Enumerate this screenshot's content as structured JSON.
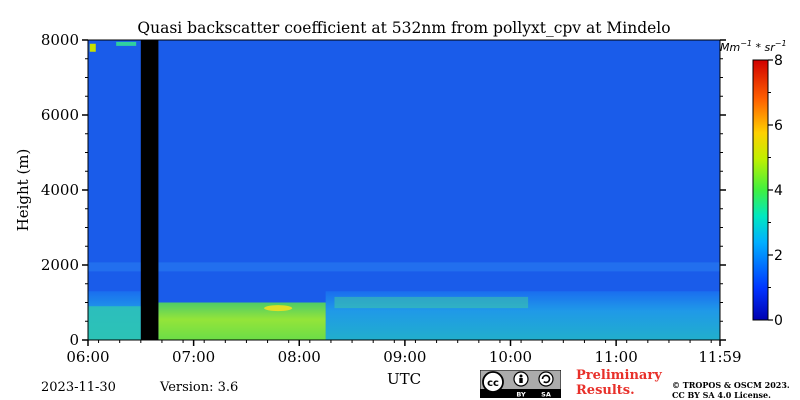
{
  "chart_data": {
    "type": "heatmap",
    "title": "Quasi backscatter coefficient at 532nm from pollyxt_cpv at Mindelo",
    "xlabel": "UTC",
    "ylabel": "Height (m)",
    "x_ticks": [
      "06:00",
      "07:00",
      "08:00",
      "09:00",
      "10:00",
      "11:00",
      "11:59"
    ],
    "x_tick_minutes": [
      0,
      60,
      120,
      180,
      240,
      300,
      359
    ],
    "xlim_minutes": [
      0,
      359
    ],
    "y_ticks": [
      "0",
      "2000",
      "4000",
      "6000",
      "8000"
    ],
    "ylim": [
      0,
      8000
    ],
    "colorbar": {
      "label": "Mm^-1 * sr^-1",
      "range": [
        0,
        8
      ],
      "ticks": [
        "0",
        "2",
        "4",
        "6",
        "8"
      ],
      "colormap": "jet"
    },
    "no_data_interval_minutes": [
      30,
      40
    ],
    "approx_field": {
      "background_value": 0.7,
      "boundary_layer": [
        {
          "start_min": 0,
          "end_min": 30,
          "top_m": 1300,
          "value": 2.6
        },
        {
          "start_min": 40,
          "end_min": 135,
          "top_m": 1000,
          "value": 3.3
        },
        {
          "start_min": 135,
          "end_min": 359,
          "top_m": 1300,
          "value": 1.8
        }
      ],
      "aerosol_layer": {
        "height_m": 1950,
        "value": 1.3
      },
      "max_value_near": {
        "time_min": 108,
        "height_m": 850,
        "value": 4.5
      }
    }
  },
  "footer": {
    "date": "2023-11-30",
    "version": "Version: 3.6",
    "preliminary_line1": "Preliminary",
    "preliminary_line2": "Results.",
    "preliminary_color": "#e8302a",
    "license_line1": "© TROPOS & OSCM 2023.",
    "license_line2": "CC BY SA 4.0 License.",
    "cc_badge": {
      "icons": [
        "cc-icon",
        "by-icon",
        "sa-icon"
      ],
      "text_by": "BY",
      "text_sa": "SA"
    }
  }
}
